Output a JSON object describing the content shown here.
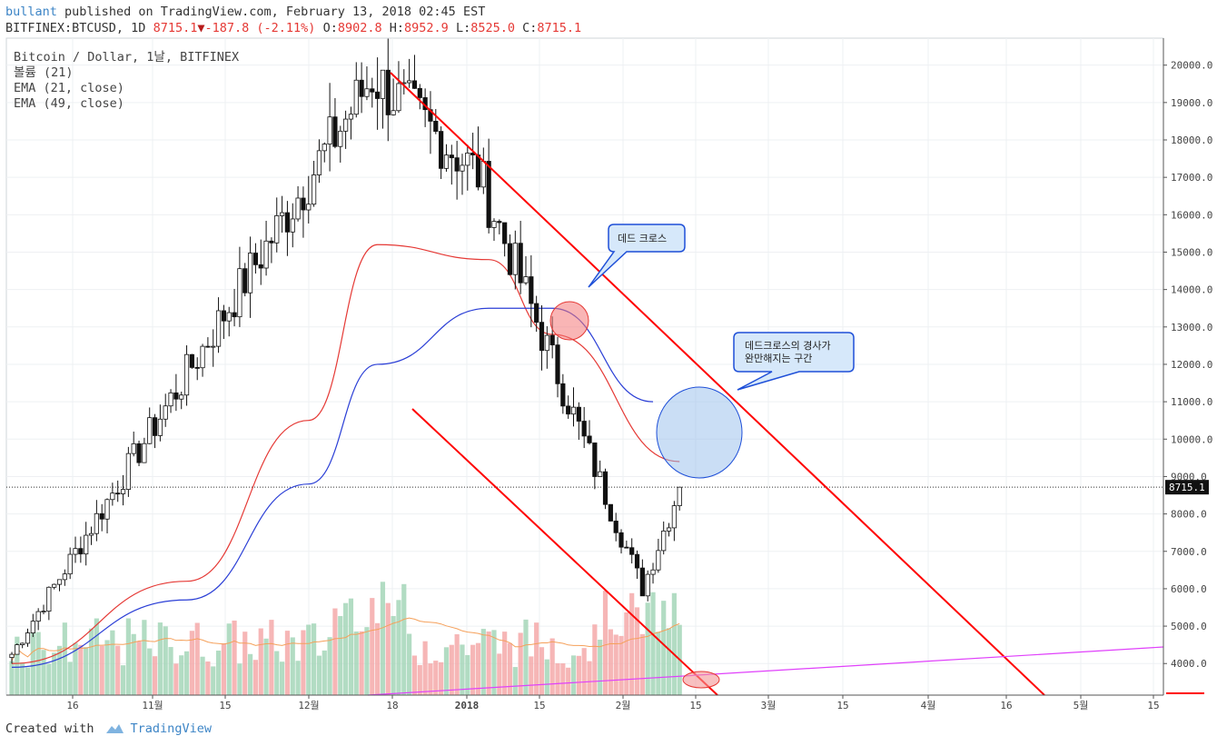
{
  "header": {
    "user": "bullant",
    "published_text": "published on TradingView.com, February 13, 2018 02:45 EST"
  },
  "ohlc": {
    "symbol": "BITFINEX:BTCUSD, 1D",
    "last": "8715.1",
    "change": "-187.8 (-2.11%)",
    "o_label": "O:",
    "o": "8902.8",
    "h_label": "H:",
    "h": "8952.9",
    "l_label": "L:",
    "l": "8525.0",
    "c_label": "C:",
    "c": "8715.1"
  },
  "legend": {
    "title": "Bitcoin / Dollar, 1날, BITFINEX",
    "volume": "볼륨 (21)",
    "ema21": "EMA (21, close)",
    "ema49": "EMA (49, close)"
  },
  "annotations": {
    "dead_cross": "데드 크로스",
    "slope_line1": "데드크로스의 경사가",
    "slope_line2": "완만해지는 구간"
  },
  "footer": {
    "created_with": "Created with",
    "brand": "TradingView"
  },
  "colors": {
    "up": "#ffffff",
    "down": "#111111",
    "ema21": "#e53935",
    "ema49": "#2b3fd6",
    "vol_up": "#a5d6b8",
    "vol_down": "#f4a9a9",
    "vol_ma": "#f5a05a",
    "channel": "#ff0000",
    "trend": "#e040fb"
  },
  "chart_data": {
    "type": "candlestick",
    "symbol": "BITFINEX:BTCUSD",
    "interval": "1D",
    "last_price": 8715.1,
    "price_axis": {
      "ticks": [
        4000,
        5000,
        6000,
        7000,
        8000,
        9000,
        10000,
        11000,
        12000,
        13000,
        14000,
        15000,
        16000,
        17000,
        18000,
        19000,
        20000
      ],
      "tick_labels": [
        "4000.0",
        "5000.0",
        "6000.0",
        "7000.0",
        "8000.0",
        "9000.0",
        "10000.0",
        "11000.0",
        "12000.0",
        "13000.0",
        "14000.0",
        "15000.0",
        "16000.0",
        "17000.0",
        "18000.0",
        "19000.0",
        "20000.0"
      ],
      "ylim": [
        3000,
        20700
      ]
    },
    "time_axis": {
      "labels": [
        "16",
        "11월",
        "15",
        "12월",
        "18",
        "2018",
        "15",
        "2월",
        "15",
        "3월",
        "15",
        "4월",
        "16",
        "5월",
        "15"
      ],
      "bold": [
        "2018"
      ]
    },
    "key_points": [
      {
        "date": "2017-10-10",
        "price": 4250
      },
      {
        "date": "2017-12-17",
        "price": 19700
      },
      {
        "date": "2018-01-06",
        "price": 17100
      },
      {
        "date": "2018-02-06",
        "price": 6000
      },
      {
        "date": "2018-02-13",
        "price": 8715.1
      }
    ],
    "ema21_points": [
      {
        "date": "2017-10-10",
        "price": 4000
      },
      {
        "date": "2017-11-12",
        "price": 6200
      },
      {
        "date": "2017-12-05",
        "price": 10500
      },
      {
        "date": "2017-12-18",
        "price": 15200
      },
      {
        "date": "2018-01-08",
        "price": 14800
      },
      {
        "date": "2018-01-20",
        "price": 12800
      },
      {
        "date": "2018-02-13",
        "price": 9400
      }
    ],
    "ema49_points": [
      {
        "date": "2017-10-10",
        "price": 3900
      },
      {
        "date": "2017-11-12",
        "price": 5700
      },
      {
        "date": "2017-12-05",
        "price": 8800
      },
      {
        "date": "2017-12-18",
        "price": 12000
      },
      {
        "date": "2018-01-08",
        "price": 13500
      },
      {
        "date": "2018-01-20",
        "price": 13500
      },
      {
        "date": "2018-02-08",
        "price": 11000
      }
    ]
  }
}
